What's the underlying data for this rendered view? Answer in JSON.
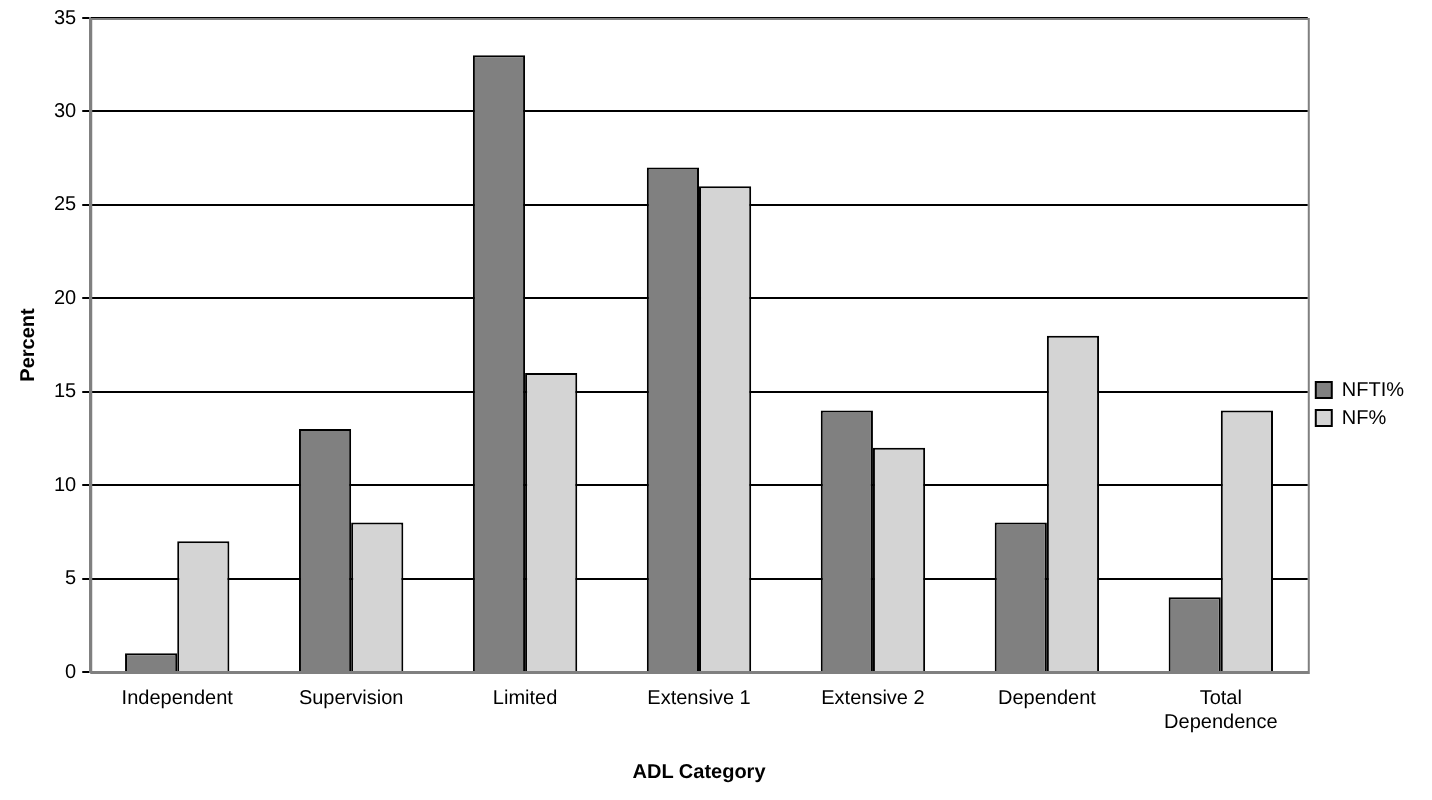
{
  "chart_data": {
    "type": "bar",
    "xlabel": "ADL Category",
    "ylabel": "Percent",
    "categories": [
      "Independent",
      "Supervision",
      "Limited",
      "Extensive 1",
      "Extensive 2",
      "Dependent",
      "Total Dependence"
    ],
    "series": [
      {
        "name": "NFTI%",
        "color": "#808080",
        "values": [
          1,
          13,
          33,
          27,
          14,
          8,
          4
        ]
      },
      {
        "name": "NF%",
        "color": "#d4d4d4",
        "values": [
          7,
          8,
          16,
          26,
          12,
          18,
          14
        ]
      }
    ],
    "ylim": [
      0,
      35
    ],
    "yticks": [
      0,
      5,
      10,
      15,
      20,
      25,
      30,
      35
    ],
    "grid": "y",
    "legend": "right"
  }
}
